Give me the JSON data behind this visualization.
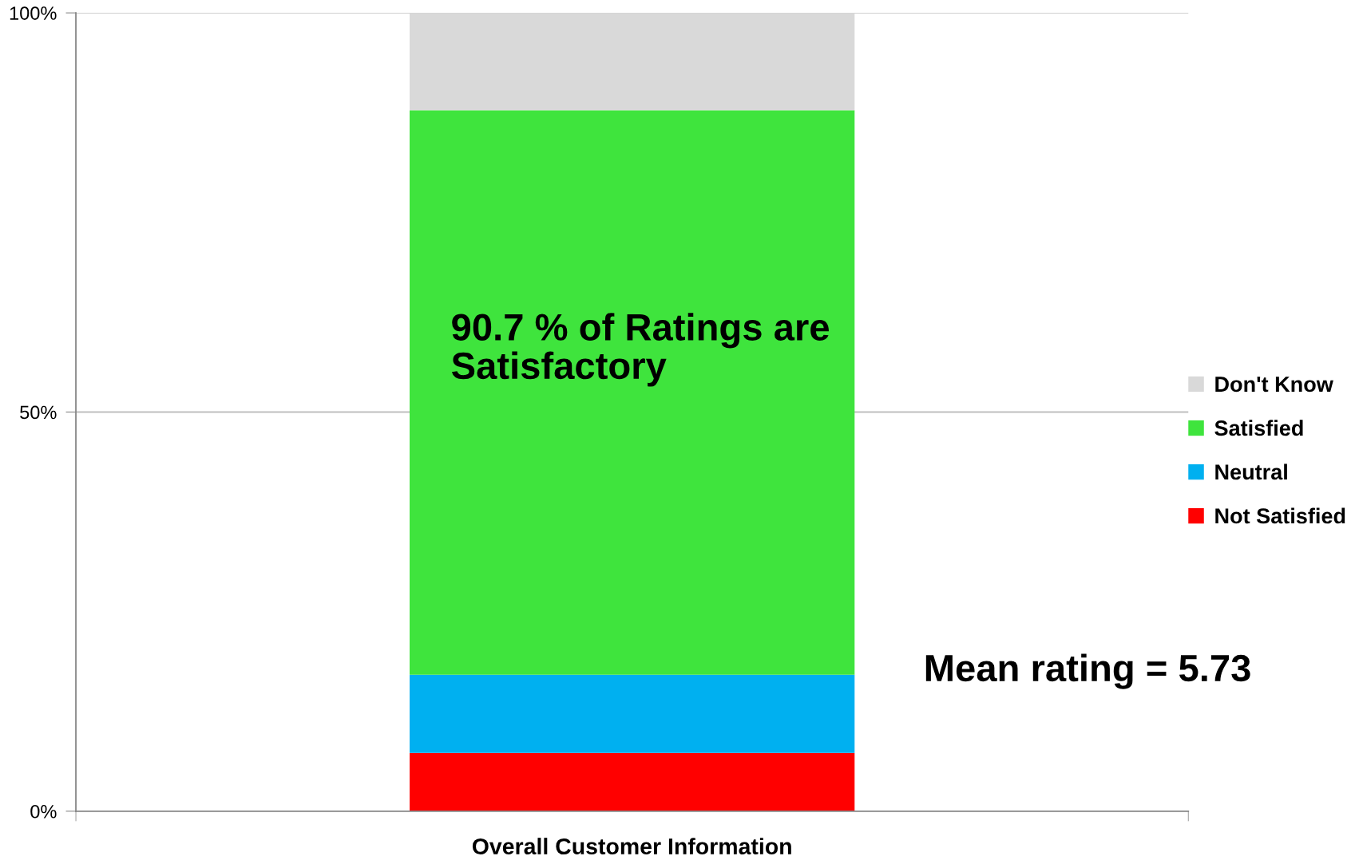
{
  "chart_data": {
    "type": "bar",
    "stacked": true,
    "categories": [
      "Overall Customer Information"
    ],
    "series": [
      {
        "name": "Not Satisfied",
        "color": "#ff0000",
        "values": [
          7.3
        ]
      },
      {
        "name": "Neutral",
        "color": "#00b0f0",
        "values": [
          9.8
        ]
      },
      {
        "name": "Satisfied",
        "color": "#3fe43d",
        "values": [
          70.7
        ]
      },
      {
        "name": "Don't Know",
        "color": "#d9d9d9",
        "values": [
          12.2
        ]
      }
    ],
    "ylim": [
      0,
      100
    ],
    "yticks": [
      {
        "value": 0,
        "label": "0%"
      },
      {
        "value": 50,
        "label": "50%"
      },
      {
        "value": 100,
        "label": "100%"
      }
    ],
    "grid": "y",
    "legend": "right",
    "annotations": [
      "90.7 % of Ratings are\nSatisfactory",
      "Mean rating = 5.73"
    ]
  }
}
